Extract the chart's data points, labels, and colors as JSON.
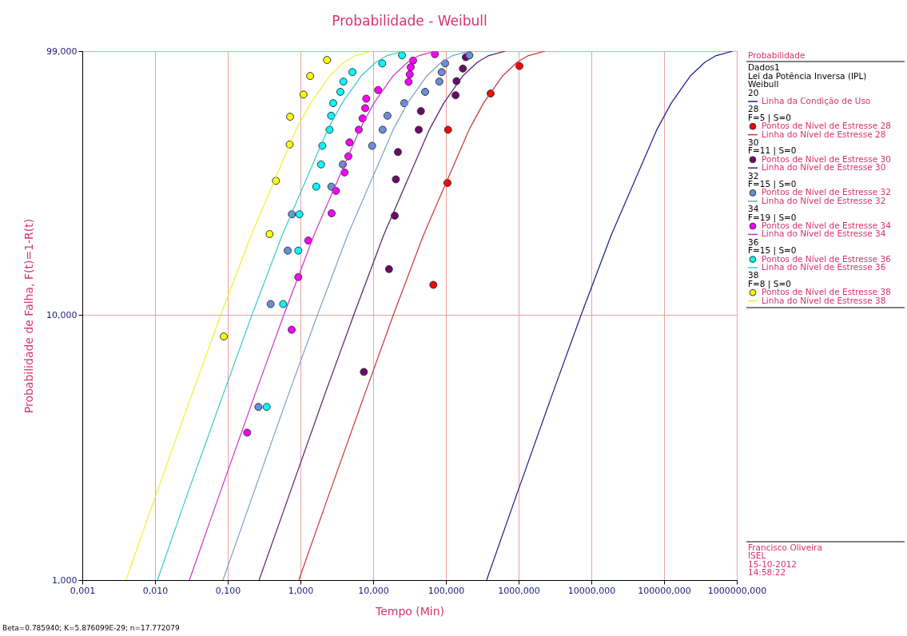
{
  "chart_data": {
    "type": "scatter",
    "title": "Probabilidade - Weibull",
    "xlabel": "Tempo (Min)",
    "ylabel": "Probabilidade de Falha, F(t)=1-R(t)",
    "legend_title": "Probabilidade",
    "log": "xy",
    "grid": true,
    "legend": "right",
    "marker": "circle",
    "line_style": "solid",
    "xlim": [
      0.001,
      1000000
    ],
    "xticks": [
      {
        "value": 0.001,
        "label": "0,001"
      },
      {
        "value": 0.01,
        "label": "0,010"
      },
      {
        "value": 0.1,
        "label": "0,100"
      },
      {
        "value": 1,
        "label": "1,000"
      },
      {
        "value": 10,
        "label": "10,000"
      },
      {
        "value": 100,
        "label": "100,000"
      },
      {
        "value": 1000,
        "label": "1000,000"
      },
      {
        "value": 10000,
        "label": "10000,000"
      },
      {
        "value": 100000,
        "label": "100000,000"
      },
      {
        "value": 1000000,
        "label": "1000000,000"
      }
    ],
    "ylim": [
      1,
      99
    ],
    "yticks": [
      {
        "value": 1,
        "label": "1,000"
      },
      {
        "value": 10,
        "label": "10,000"
      },
      {
        "value": 99,
        "label": "99,000"
      }
    ],
    "series": [
      {
        "name": "Linha da Condição de Uso",
        "type": "line",
        "marker": "none",
        "color": "#1a1a8c",
        "x": [
          363,
          882,
          2886,
          7224,
          18731,
          79352,
          126324,
          231594,
          365178,
          510378,
          881727
        ],
        "values": [
          1,
          2,
          5,
          10,
          20,
          50,
          63.2,
          80,
          90,
          95,
          99
        ]
      },
      {
        "name": "Pontos de Nível de Estresse 28",
        "color": "#ff0000",
        "x": [
          67.2,
          105,
          107,
          412,
          1026
        ],
        "values": [
          13.0,
          31.5,
          50.0,
          68.5,
          87.0
        ]
      },
      {
        "name": "Linha do Nível de Estresse 28",
        "type": "line",
        "marker": "none",
        "color": "#cc3333",
        "x": [
          0.95,
          2.31,
          7.6,
          18.9,
          49,
          208,
          331,
          606,
          956,
          1336,
          2308
        ],
        "values": [
          1,
          2,
          5,
          10,
          20,
          50,
          63.2,
          80,
          90,
          95,
          99
        ]
      },
      {
        "name": "Pontos de Nível de Estresse 30",
        "color": "#6a0a6a",
        "x": [
          7.44,
          16.5,
          19.8,
          20.5,
          21.9,
          42.3,
          45.3,
          136,
          140,
          171,
          188
        ],
        "values": [
          6.1,
          14.9,
          23.7,
          32.5,
          41.2,
          50.0,
          58.8,
          67.5,
          76.3,
          85.1,
          93.9
        ]
      },
      {
        "name": "Linha do Nível de Estresse 30",
        "type": "line",
        "marker": "none",
        "color": "#5a1a6e",
        "x": [
          0.27,
          0.66,
          2.15,
          5.4,
          13.9,
          59,
          94,
          172,
          272,
          380,
          656
        ],
        "values": [
          1,
          2,
          5,
          10,
          20,
          50,
          63.2,
          80,
          90,
          95,
          99
        ]
      },
      {
        "name": "Pontos de Nível de Estresse 32",
        "color": "#6a8fd8",
        "x": [
          0.264,
          0.389,
          0.667,
          0.762,
          2.66,
          3.82,
          9.68,
          13.5,
          15.7,
          26.8,
          51.8,
          81.1,
          87.5,
          97.5,
          210
        ],
        "values": [
          4.5,
          11.0,
          17.5,
          24.0,
          30.5,
          37.0,
          43.5,
          50.0,
          56.5,
          63.0,
          69.5,
          76.0,
          82.5,
          89.0,
          95.5
        ]
      },
      {
        "name": "Linha do Nível de Estresse 32",
        "type": "line",
        "marker": "none",
        "color": "#7aa0c8",
        "x": [
          0.086,
          0.209,
          0.68,
          1.71,
          4.44,
          18.8,
          29.9,
          55,
          87,
          121,
          209
        ],
        "values": [
          1,
          2,
          5,
          10,
          20,
          50,
          63.2,
          80,
          90,
          95,
          99
        ]
      },
      {
        "name": "Pontos de Nível de Estresse 34",
        "color": "#ff00ff",
        "x": [
          0.185,
          0.757,
          0.934,
          1.28,
          2.68,
          3.07,
          4.05,
          4.56,
          4.72,
          6.34,
          7.14,
          7.76,
          8.02,
          11.7,
          30.7,
          31.8,
          32.8,
          35.4,
          70.6
        ],
        "values": [
          3.6,
          8.8,
          13.9,
          19.1,
          24.2,
          29.4,
          34.5,
          39.7,
          44.8,
          50.0,
          55.2,
          60.3,
          65.5,
          70.6,
          75.8,
          80.9,
          86.1,
          91.2,
          96.4
        ]
      },
      {
        "name": "Linha do Nível de Estresse 34",
        "type": "line",
        "marker": "none",
        "color": "#cc33cc",
        "x": [
          0.0297,
          0.072,
          0.236,
          0.59,
          1.53,
          6.5,
          10.3,
          18.9,
          29.9,
          41.8,
          72
        ],
        "values": [
          1,
          2,
          5,
          10,
          20,
          50,
          63.2,
          80,
          90,
          95,
          99
        ]
      },
      {
        "name": "Pontos de Nível de Estresse 36",
        "color": "#00ffff",
        "x": [
          0.343,
          0.578,
          0.934,
          0.968,
          1.65,
          1.92,
          2.0,
          2.51,
          2.64,
          2.82,
          3.54,
          3.89,
          5.18,
          13.3,
          24.9
        ],
        "values": [
          4.5,
          11.0,
          17.5,
          24.0,
          30.5,
          37.0,
          43.5,
          50.0,
          56.5,
          63.0,
          69.5,
          76.0,
          82.5,
          89.0,
          95.5
        ]
      },
      {
        "name": "Linha do Nível de Estresse 36",
        "type": "line",
        "marker": "none",
        "color": "#33cccc",
        "x": [
          0.0108,
          0.026,
          0.086,
          0.215,
          0.56,
          2.36,
          3.76,
          6.9,
          10.9,
          15.2,
          26.2
        ],
        "values": [
          1,
          2,
          5,
          10,
          20,
          50,
          63.2,
          80,
          90,
          95,
          99
        ]
      },
      {
        "name": "Pontos de Nível de Estresse 38",
        "color": "#ffff00",
        "x": [
          0.088,
          0.376,
          0.46,
          0.71,
          0.72,
          1.1,
          1.36,
          2.32
        ],
        "values": [
          8.3,
          20.2,
          32.1,
          44.0,
          56.0,
          67.9,
          79.8,
          91.7
        ]
      },
      {
        "name": "Linha do Nível de Estresse 38",
        "type": "line",
        "marker": "none",
        "color": "#f0f030",
        "x": [
          0.004,
          0.0097,
          0.032,
          0.08,
          0.21,
          0.87,
          1.39,
          2.55,
          4.0,
          5.6,
          9.7
        ],
        "values": [
          1,
          2,
          5,
          10,
          20,
          50,
          63.2,
          80,
          90,
          95,
          99
        ]
      }
    ],
    "annotations": [
      "Dados1",
      "Lei da Potência Inversa (IPL)",
      "Weibull",
      "20",
      "28",
      "F=5 | S=0",
      "30",
      "F=11 | S=0",
      "32",
      "F=15 | S=0",
      "34",
      "F=19 | S=0",
      "36",
      "F=15 | S=0",
      "38",
      "F=8 | S=0",
      "Francisco Oliveira",
      "ISEL",
      "15-10-2012",
      "14:58:22",
      "Beta=0.785940; K=5.876099E-29; n=17.772079"
    ]
  }
}
